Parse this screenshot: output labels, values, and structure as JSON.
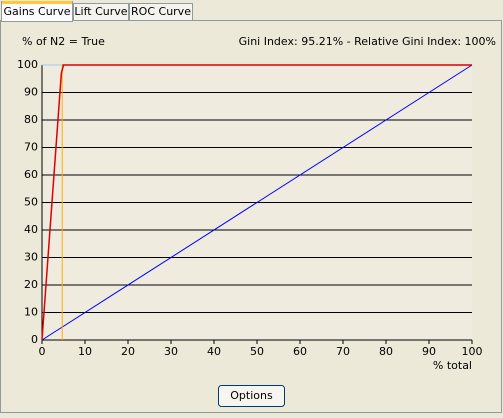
{
  "tabs": [
    "Gains Curve",
    "Lift Curve",
    "ROC Curve"
  ],
  "button": "Options",
  "chart_data": {
    "type": "line",
    "y_label": "% of N2 = True",
    "annotation": "Gini Index: 95.21% - Relative Gini Index: 100%",
    "x_label": "% total",
    "xlim": [
      0,
      100
    ],
    "xticks": [
      0,
      10,
      20,
      30,
      40,
      50,
      60,
      70,
      80,
      90,
      100
    ],
    "ylim": [
      0,
      100
    ],
    "yticks": [
      0,
      10,
      20,
      30,
      40,
      50,
      60,
      70,
      80,
      90,
      100
    ],
    "grid": true,
    "series": [
      {
        "color": "#0000ff",
        "x": [
          0,
          100
        ],
        "values": [
          0,
          100
        ]
      },
      {
        "color": "#a8c8ec",
        "x": [
          0,
          4.7
        ],
        "values": [
          100,
          100
        ]
      },
      {
        "color": "#ffb000",
        "x": [
          4.7,
          4.7
        ],
        "values": [
          0,
          100
        ]
      },
      {
        "color": "#e00000",
        "x": [
          0,
          4.5,
          5,
          100
        ],
        "values": [
          0,
          97,
          100,
          100
        ]
      }
    ]
  }
}
